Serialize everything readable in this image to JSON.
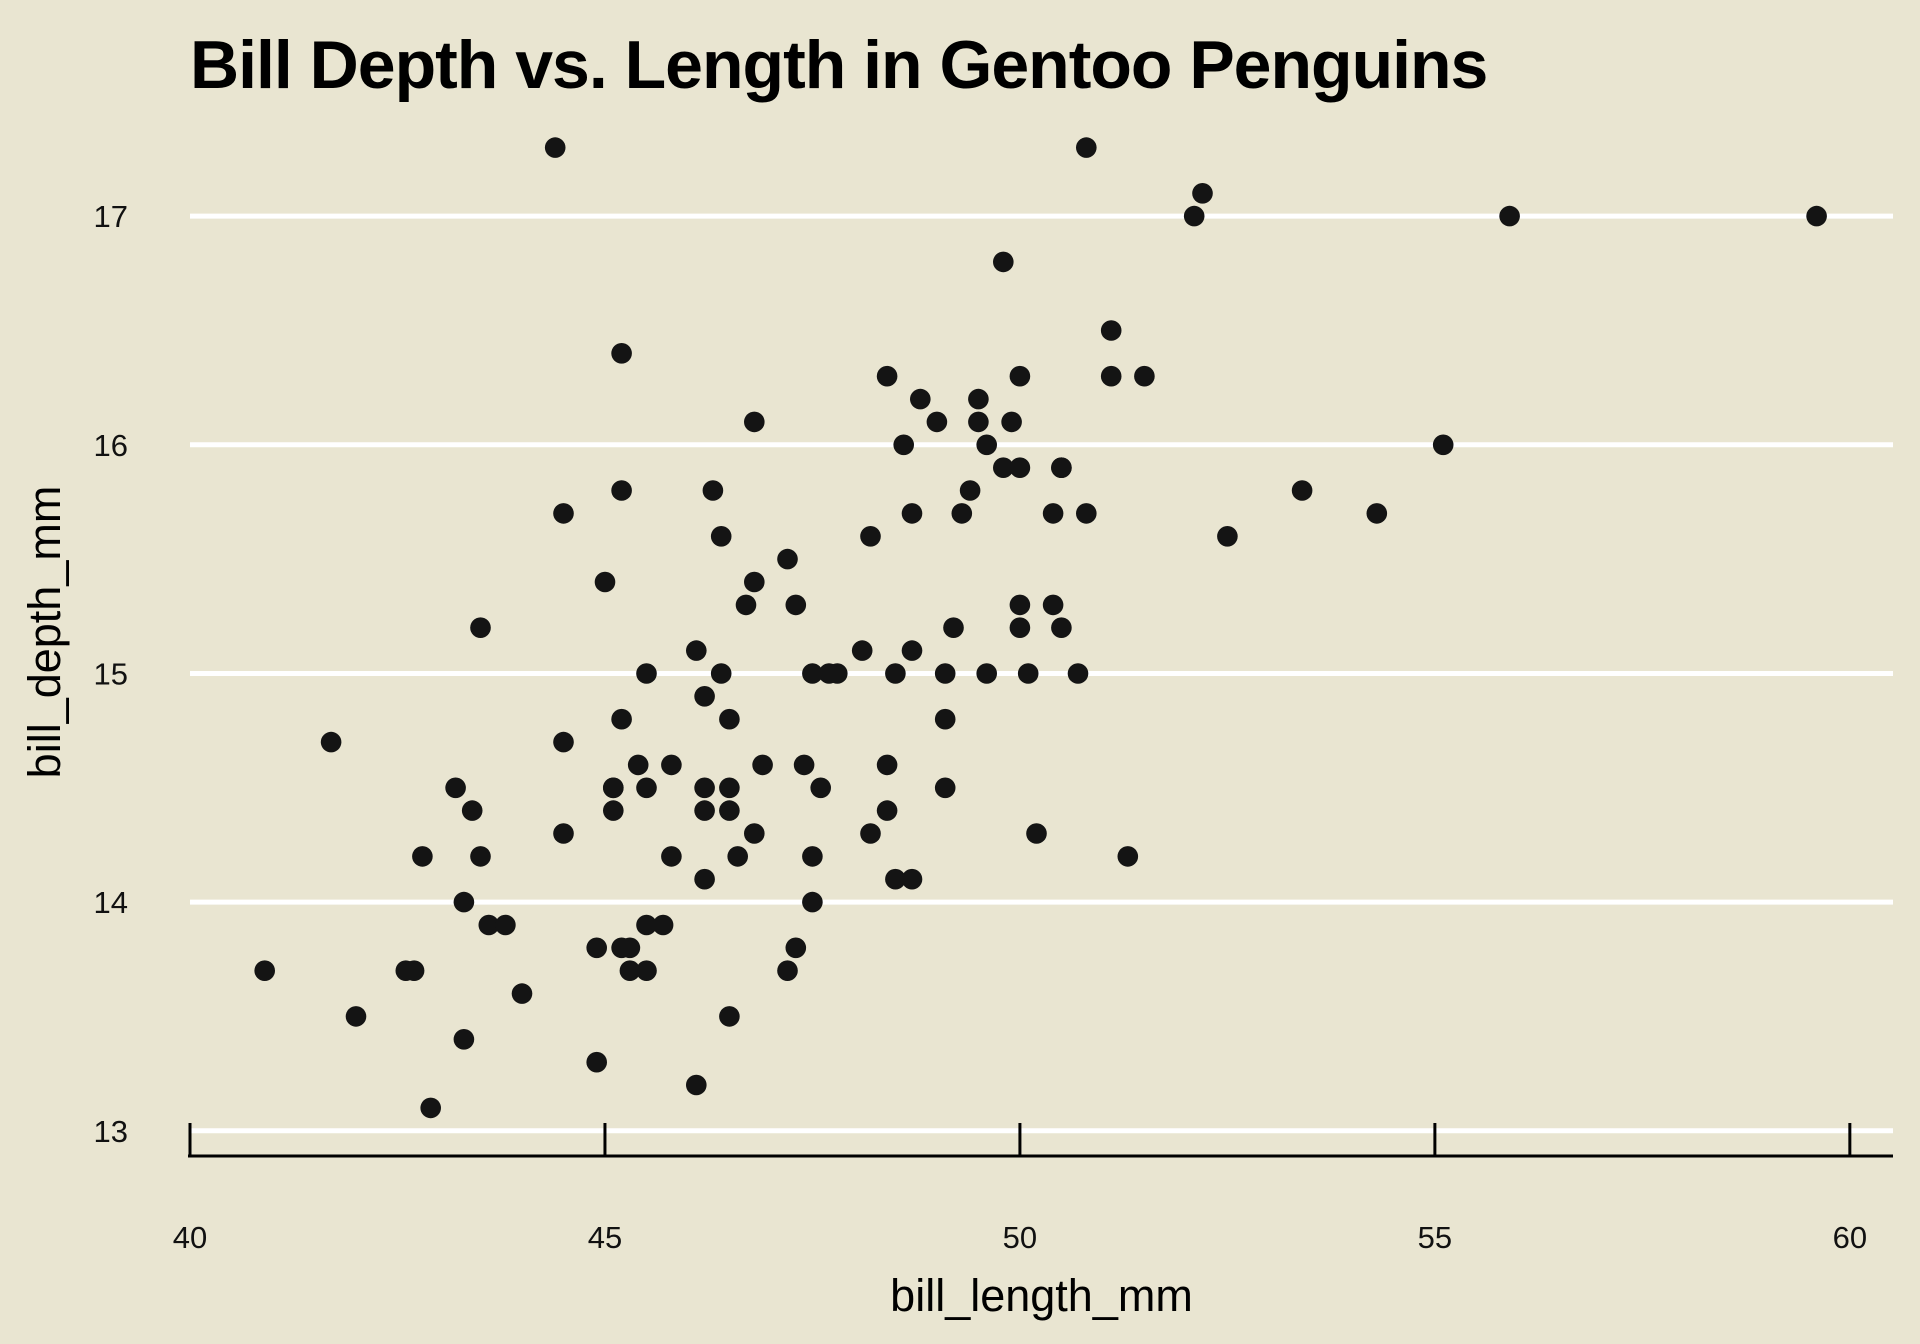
{
  "figure": {
    "title": "Bill Depth vs. Length in Gentoo Penguins",
    "x_axis_label": "bill_length_mm",
    "y_axis_label": "bill_depth_mm"
  },
  "chart_data": {
    "type": "scatter",
    "title": "Bill Depth vs. Length in Gentoo Penguins",
    "xlabel": "bill_length_mm",
    "ylabel": "bill_depth_mm",
    "series_name": "Gentoo penguins",
    "xlim": [
      40,
      60.52
    ],
    "ylim": [
      12.894,
      17.403
    ],
    "xticks": [
      40,
      45,
      50,
      55,
      60
    ],
    "yticks": [
      13,
      14,
      15,
      16,
      17
    ],
    "grid": "horizontal-only",
    "legend": "none",
    "colors": {
      "background": "#E9E5D1",
      "gridline": "#FFFFFF",
      "axis": "#000000",
      "text": "#111111",
      "marker": "#141414"
    },
    "marker_radius_px": 10.3,
    "points": [
      [
        46.1,
        13.2
      ],
      [
        50.0,
        16.3
      ],
      [
        48.7,
        14.1
      ],
      [
        50.0,
        15.2
      ],
      [
        47.6,
        14.5
      ],
      [
        46.5,
        13.5
      ],
      [
        45.4,
        14.6
      ],
      [
        46.7,
        15.3
      ],
      [
        43.3,
        13.4
      ],
      [
        46.8,
        15.4
      ],
      [
        40.9,
        13.7
      ],
      [
        49.0,
        16.1
      ],
      [
        45.5,
        13.7
      ],
      [
        48.4,
        14.6
      ],
      [
        45.8,
        14.6
      ],
      [
        49.3,
        15.7
      ],
      [
        42.0,
        13.5
      ],
      [
        49.2,
        15.2
      ],
      [
        46.2,
        14.5
      ],
      [
        48.7,
        15.1
      ],
      [
        50.2,
        14.3
      ],
      [
        45.1,
        14.5
      ],
      [
        46.5,
        14.5
      ],
      [
        46.3,
        15.8
      ],
      [
        42.9,
        13.1
      ],
      [
        46.1,
        15.1
      ],
      [
        44.5,
        14.3
      ],
      [
        47.8,
        15.0
      ],
      [
        48.2,
        14.3
      ],
      [
        50.0,
        15.3
      ],
      [
        47.3,
        15.3
      ],
      [
        42.8,
        14.2
      ],
      [
        45.1,
        14.5
      ],
      [
        59.6,
        17.0
      ],
      [
        49.1,
        14.8
      ],
      [
        48.4,
        16.3
      ],
      [
        42.6,
        13.7
      ],
      [
        44.4,
        17.3
      ],
      [
        44.0,
        13.6
      ],
      [
        48.7,
        15.7
      ],
      [
        42.7,
        13.7
      ],
      [
        49.6,
        16.0
      ],
      [
        45.3,
        13.7
      ],
      [
        49.6,
        15.0
      ],
      [
        50.5,
        15.9
      ],
      [
        43.6,
        13.9
      ],
      [
        45.5,
        13.9
      ],
      [
        50.5,
        15.9
      ],
      [
        44.9,
        13.3
      ],
      [
        45.2,
        15.8
      ],
      [
        46.6,
        14.2
      ],
      [
        48.5,
        14.1
      ],
      [
        45.1,
        14.4
      ],
      [
        50.1,
        15.0
      ],
      [
        46.5,
        14.4
      ],
      [
        45.0,
        15.4
      ],
      [
        43.8,
        13.9
      ],
      [
        45.5,
        15.0
      ],
      [
        43.2,
        14.5
      ],
      [
        50.4,
        15.3
      ],
      [
        45.3,
        13.8
      ],
      [
        46.2,
        14.9
      ],
      [
        45.7,
        13.9
      ],
      [
        54.3,
        15.7
      ],
      [
        45.8,
        14.2
      ],
      [
        49.8,
        16.8
      ],
      [
        46.2,
        14.4
      ],
      [
        49.5,
        16.2
      ],
      [
        43.5,
        14.2
      ],
      [
        50.7,
        15.0
      ],
      [
        47.7,
        15.0
      ],
      [
        46.4,
        15.6
      ],
      [
        48.2,
        15.6
      ],
      [
        46.5,
        14.8
      ],
      [
        46.4,
        15.0
      ],
      [
        48.6,
        16.0
      ],
      [
        47.5,
        14.2
      ],
      [
        51.1,
        16.3
      ],
      [
        45.2,
        13.8
      ],
      [
        45.2,
        16.4
      ],
      [
        49.1,
        14.5
      ],
      [
        52.5,
        15.6
      ],
      [
        47.4,
        14.6
      ],
      [
        50.0,
        15.9
      ],
      [
        44.9,
        13.8
      ],
      [
        50.8,
        17.3
      ],
      [
        43.4,
        14.4
      ],
      [
        51.3,
        14.2
      ],
      [
        47.5,
        14.0
      ],
      [
        52.1,
        17.0
      ],
      [
        47.5,
        15.0
      ],
      [
        52.2,
        17.1
      ],
      [
        45.5,
        14.5
      ],
      [
        49.5,
        16.1
      ],
      [
        44.5,
        14.7
      ],
      [
        50.8,
        15.7
      ],
      [
        49.4,
        15.8
      ],
      [
        46.9,
        14.6
      ],
      [
        48.4,
        14.4
      ],
      [
        51.1,
        16.5
      ],
      [
        48.5,
        15.0
      ],
      [
        55.9,
        17.0
      ],
      [
        47.2,
        15.5
      ],
      [
        49.1,
        15.0
      ],
      [
        47.3,
        13.8
      ],
      [
        46.8,
        16.1
      ],
      [
        41.7,
        14.7
      ],
      [
        53.4,
        15.8
      ],
      [
        43.3,
        14.0
      ],
      [
        48.1,
        15.1
      ],
      [
        50.5,
        15.2
      ],
      [
        49.8,
        15.9
      ],
      [
        43.5,
        15.2
      ],
      [
        51.5,
        16.3
      ],
      [
        46.2,
        14.1
      ],
      [
        55.1,
        16.0
      ],
      [
        44.5,
        15.7
      ],
      [
        48.8,
        16.2
      ],
      [
        47.2,
        13.7
      ],
      [
        46.8,
        14.3
      ],
      [
        50.4,
        15.7
      ],
      [
        45.2,
        14.8
      ],
      [
        49.9,
        16.1
      ]
    ]
  }
}
